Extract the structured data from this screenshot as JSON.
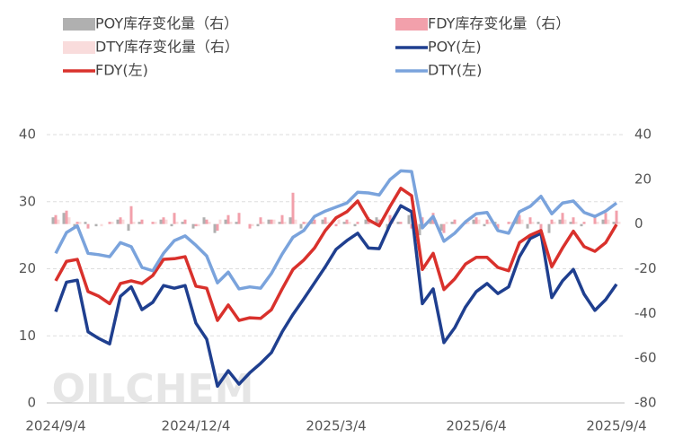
{
  "chart_data": {
    "type": "combo",
    "categories": [
      "2024/9/4",
      null,
      null,
      null,
      null,
      null,
      null,
      null,
      null,
      null,
      null,
      null,
      null,
      "2024/12/4",
      null,
      null,
      null,
      null,
      null,
      null,
      null,
      null,
      null,
      null,
      null,
      null,
      "2025/3/4",
      null,
      null,
      null,
      null,
      null,
      null,
      null,
      null,
      null,
      null,
      null,
      null,
      "2025/6/4",
      null,
      null,
      null,
      null,
      null,
      null,
      null,
      null,
      null,
      null,
      null,
      null,
      "2025/9/4"
    ],
    "series": [
      {
        "name": "POY库存变化量（右）",
        "type": "bar",
        "axis": "y2",
        "color": "#b0b0b0",
        "values": [
          3,
          5,
          -2,
          1,
          -1,
          0,
          2,
          -3,
          1,
          0,
          2,
          -1,
          1,
          -2,
          3,
          -4,
          2,
          1,
          0,
          -1,
          2,
          1,
          3,
          -2,
          1,
          2,
          0,
          1,
          -1,
          2,
          3,
          -2,
          1,
          4,
          -5,
          2,
          -3,
          1,
          0,
          2,
          -1,
          1,
          0,
          3,
          -2,
          1,
          -4,
          2,
          1,
          -1,
          0,
          2,
          1
        ]
      },
      {
        "name": "FDY库存变化量（右）",
        "type": "bar",
        "axis": "y2",
        "color": "#f2a0ab",
        "values": [
          4,
          6,
          1,
          -2,
          0,
          1,
          3,
          8,
          2,
          1,
          3,
          5,
          2,
          -1,
          2,
          -3,
          4,
          5,
          -2,
          3,
          2,
          4,
          14,
          1,
          2,
          3,
          -1,
          2,
          1,
          3,
          2,
          4,
          1,
          -2,
          3,
          5,
          -4,
          2,
          1,
          3,
          2,
          -2,
          1,
          4,
          3,
          -3,
          2,
          5,
          3,
          1,
          4,
          5,
          6
        ]
      },
      {
        "name": "DTY库存变化量（右）",
        "type": "bar",
        "axis": "y2",
        "color": "#f9dcdc",
        "values": [
          2,
          3,
          1,
          0,
          -1,
          1,
          2,
          1,
          0,
          1,
          2,
          1,
          0,
          -1,
          1,
          2,
          1,
          0,
          -1,
          1,
          2,
          1,
          2,
          1,
          0,
          1,
          2,
          1,
          0,
          1,
          1,
          2,
          0,
          1,
          -1,
          2,
          1,
          0,
          1,
          2,
          1,
          0,
          1,
          2,
          1,
          0,
          1,
          2,
          1,
          0,
          1,
          2,
          1
        ]
      },
      {
        "name": "POY(左)",
        "type": "line",
        "color": "#1f3f8f",
        "values": [
          13.6,
          18,
          18.3,
          10.6,
          9.6,
          8.8,
          15.9,
          17.3,
          13.9,
          15,
          17.5,
          17.1,
          17.5,
          11.9,
          9.5,
          2.5,
          4.8,
          2.8,
          4.5,
          5.9,
          7.5,
          10.6,
          13.2,
          15.5,
          17.9,
          20.3,
          22.9,
          24.2,
          25.3,
          23.1,
          23,
          26.6,
          29.4,
          28.5,
          14.8,
          17,
          9,
          11.2,
          14.3,
          16.6,
          17.8,
          16.3,
          17.3,
          21.8,
          24.5,
          25.3,
          15.7,
          18.2,
          19.9,
          16.2,
          13.8,
          15.4,
          17.7
        ]
      },
      {
        "name": "FDY(左)",
        "type": "line",
        "color": "#d9312c",
        "values": [
          18.2,
          21.1,
          21.4,
          16.6,
          15.9,
          14.8,
          17.8,
          18.2,
          17.8,
          19,
          21.4,
          21.5,
          21.8,
          17.4,
          17.1,
          12.3,
          14.6,
          12.3,
          12.7,
          12.6,
          13.9,
          17,
          19.9,
          21.3,
          23.1,
          25.7,
          27.6,
          28.5,
          30.1,
          27.3,
          26.4,
          29.3,
          32,
          30.9,
          19.9,
          22.3,
          16.9,
          18.5,
          20.7,
          21.7,
          21.7,
          20.2,
          19.7,
          23.9,
          25,
          25.7,
          20.3,
          23.1,
          25.6,
          23.3,
          22.6,
          23.9,
          26.6
        ]
      },
      {
        "name": "DTY(左)",
        "type": "line",
        "color": "#7aa3dc",
        "values": [
          22.3,
          25.4,
          26.4,
          22.3,
          22.1,
          21.8,
          23.9,
          23.3,
          20.2,
          19.7,
          22.3,
          24.2,
          24.9,
          23.5,
          21.9,
          17.9,
          19.5,
          17,
          17.3,
          17.1,
          19.3,
          22.2,
          24.7,
          25.7,
          27.8,
          28.6,
          29.2,
          29.8,
          31.4,
          31.3,
          31,
          33.3,
          34.6,
          34.5,
          26.1,
          27.8,
          24.1,
          25.3,
          27,
          28.2,
          28.4,
          25.7,
          25.3,
          28.5,
          29.3,
          30.8,
          28.2,
          29.8,
          30.1,
          28.4,
          27.8,
          28.6,
          29.8
        ]
      }
    ],
    "ylim": [
      0,
      40
    ],
    "yticks": [
      0,
      10,
      20,
      30,
      40
    ],
    "y2lim": [
      -80,
      40
    ],
    "y2ticks": [
      -80,
      -60,
      -40,
      -20,
      0,
      20,
      40
    ],
    "grid": true,
    "legend": "top",
    "watermark": "OILCHEM"
  }
}
